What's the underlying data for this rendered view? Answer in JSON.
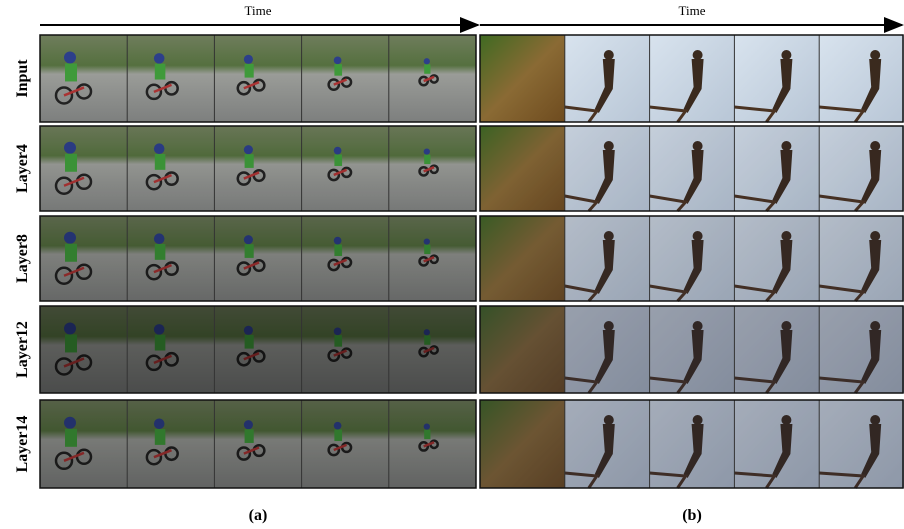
{
  "time_labels": [
    "Time",
    "Time"
  ],
  "row_labels": [
    "Input",
    "Layer4",
    "Layer8",
    "Layer12",
    "Layer14"
  ],
  "panel_captions": [
    "(a)",
    "(b)"
  ]
}
